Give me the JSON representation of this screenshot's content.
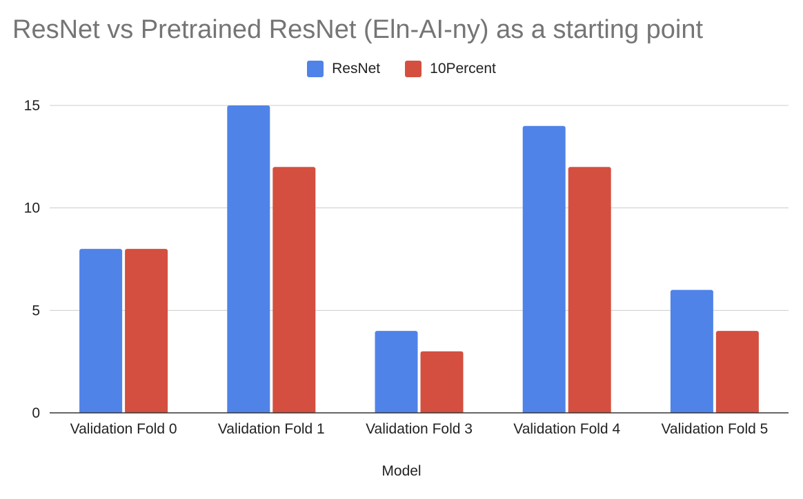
{
  "chart_data": {
    "type": "bar",
    "title": "ResNet vs Pretrained ResNet (Eln-AI-ny) as a starting point",
    "xlabel": "Model",
    "ylabel": "",
    "categories": [
      "Validation Fold 0",
      "Validation Fold 1",
      "Validation Fold 3",
      "Validation Fold 4",
      "Validation Fold 5"
    ],
    "series": [
      {
        "name": "ResNet",
        "color": "#4f83e8",
        "values": [
          8,
          15,
          4,
          14,
          6
        ]
      },
      {
        "name": "10Percent",
        "color": "#d44f3f",
        "values": [
          8,
          12,
          3,
          12,
          4
        ]
      }
    ],
    "ylim": [
      0,
      15
    ],
    "yticks": [
      0,
      5,
      10,
      15
    ],
    "grid": true,
    "legend_position": "top"
  }
}
